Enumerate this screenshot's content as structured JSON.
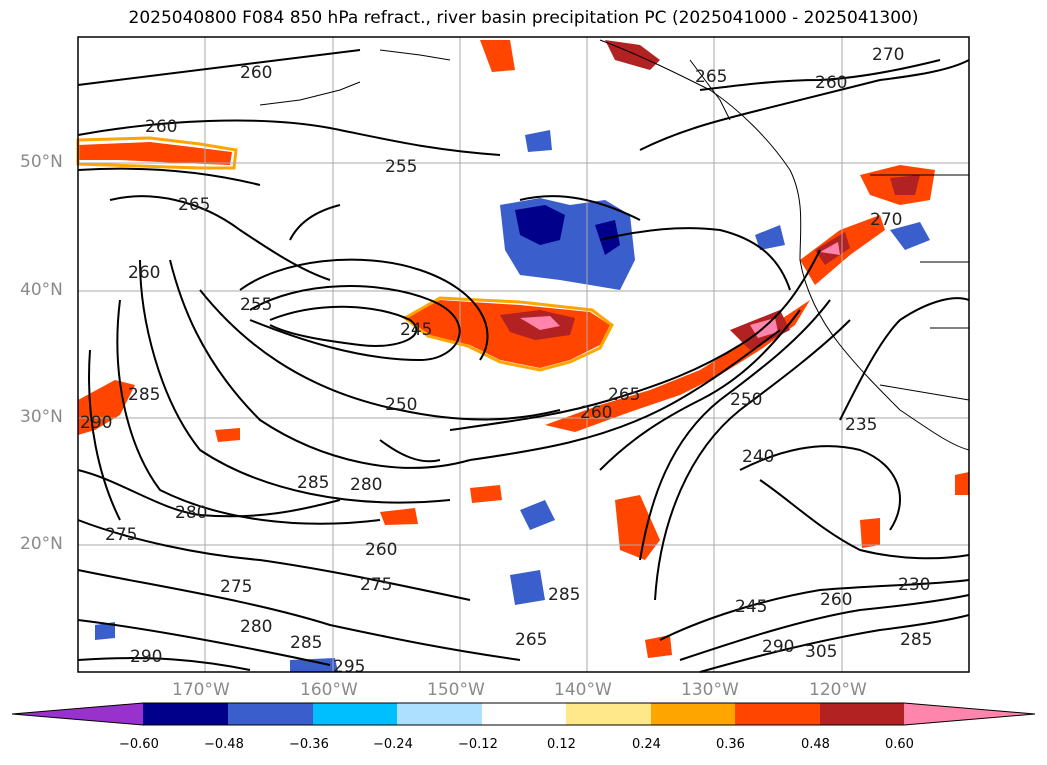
{
  "title": "2025040800 F084 850 hPa refract., river basin precipitation PC (2025041000 - 2025041300)",
  "latitude_labels": [
    "50°N",
    "40°N",
    "30°N",
    "20°N"
  ],
  "longitude_labels": [
    "170°W",
    "160°W",
    "150°W",
    "140°W",
    "130°W",
    "120°W"
  ],
  "contour_labels": [
    "260",
    "260",
    "255",
    "265",
    "260",
    "255",
    "250",
    "245",
    "280",
    "285",
    "290",
    "280",
    "285",
    "275",
    "280",
    "285",
    "290",
    "295",
    "260",
    "265",
    "270",
    "265",
    "250",
    "240",
    "235",
    "230",
    "245",
    "260",
    "285",
    "290",
    "305",
    "275",
    "270",
    "265",
    "285",
    "260",
    "260",
    "275"
  ],
  "colorbar": {
    "tick_labels": [
      "−0.60",
      "−0.48",
      "−0.36",
      "−0.24",
      "−0.12",
      "0.12",
      "0.24",
      "0.36",
      "0.48",
      "0.60"
    ],
    "colors": [
      "#9932CC",
      "#00008B",
      "#3A5FCD",
      "#00BFFF",
      "#ADDFFF",
      "#FFFFFF",
      "#FFE88A",
      "#FFA500",
      "#FF4500",
      "#B22222",
      "#FF85AD"
    ]
  },
  "colors": {
    "contour": "#000000",
    "grid": "#aaaaaa",
    "axis_label": "#8a8a8a"
  }
}
